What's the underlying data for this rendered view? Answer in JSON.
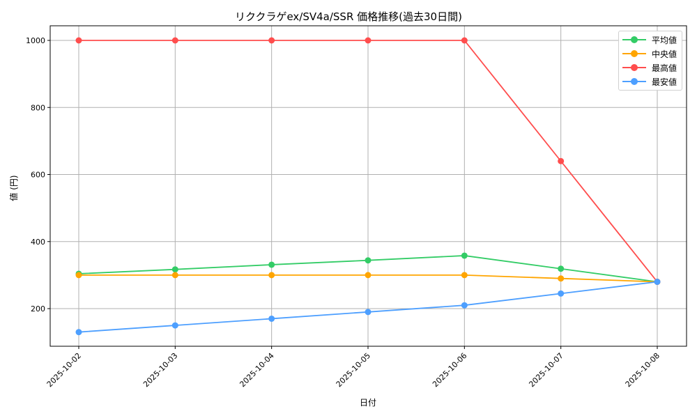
{
  "chart_data": {
    "type": "line",
    "title": "リククラゲex/SV4a/SSR 価格推移(過去30日間)",
    "xlabel": "日付",
    "ylabel": "値 (円)",
    "categories": [
      "2025-10-02",
      "2025-10-03",
      "2025-10-04",
      "2025-10-05",
      "2025-10-06",
      "2025-10-07",
      "2025-10-08"
    ],
    "series": [
      {
        "name": "平均値",
        "color": "#33cc66",
        "values": [
          304,
          317,
          331,
          344,
          358,
          319,
          280
        ]
      },
      {
        "name": "中央値",
        "color": "#ffa500",
        "values": [
          300,
          300,
          300,
          300,
          300,
          290,
          280
        ]
      },
      {
        "name": "最高値",
        "color": "#ff4d4d",
        "values": [
          1000,
          1000,
          1000,
          1000,
          1000,
          640,
          280
        ]
      },
      {
        "name": "最安値",
        "color": "#4d9fff",
        "values": [
          130,
          150,
          170,
          190,
          210,
          245,
          280
        ]
      }
    ],
    "yticks": [
      200,
      400,
      600,
      800,
      1000
    ],
    "ylim": [
      88,
      1040
    ],
    "grid": true,
    "legend_position": "upper right",
    "markers": "circle"
  }
}
